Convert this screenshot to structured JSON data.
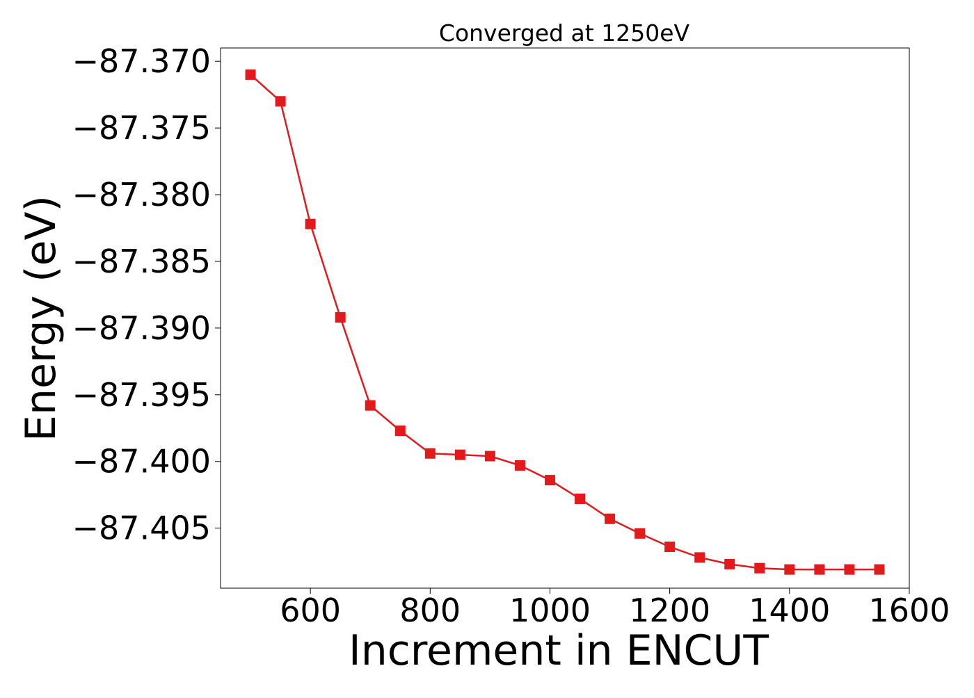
{
  "chart_data": {
    "type": "line",
    "title": "Converged at 1250eV",
    "xlabel": "Increment in ENCUT",
    "ylabel": "Energy (eV)",
    "xlim": [
      450,
      1600
    ],
    "ylim": [
      -87.4095,
      -87.369
    ],
    "x_ticks": [
      600,
      800,
      1000,
      1200,
      1400,
      1600
    ],
    "x_tick_labels": [
      "600",
      "800",
      "1000",
      "1200",
      "1400",
      "1600"
    ],
    "y_ticks": [
      -87.37,
      -87.375,
      -87.38,
      -87.385,
      -87.39,
      -87.395,
      -87.4,
      -87.405
    ],
    "y_tick_labels": [
      "−87.370",
      "−87.375",
      "−87.380",
      "−87.385",
      "−87.390",
      "−87.395",
      "−87.400",
      "−87.405"
    ],
    "grid": false,
    "series": [
      {
        "color": "#e31a1c",
        "marker": "square",
        "x": [
          500,
          550,
          600,
          650,
          700,
          750,
          800,
          850,
          900,
          950,
          1000,
          1050,
          1100,
          1150,
          1200,
          1250,
          1300,
          1350,
          1400,
          1450,
          1500,
          1550
        ],
        "y": [
          -87.371,
          -87.373,
          -87.3822,
          -87.3892,
          -87.3958,
          -87.3977,
          -87.3994,
          -87.3995,
          -87.3996,
          -87.4003,
          -87.4014,
          -87.4028,
          -87.4043,
          -87.4054,
          -87.4064,
          -87.4072,
          -87.4077,
          -87.408,
          -87.4081,
          -87.4081,
          -87.4081,
          -87.4081
        ]
      }
    ]
  }
}
